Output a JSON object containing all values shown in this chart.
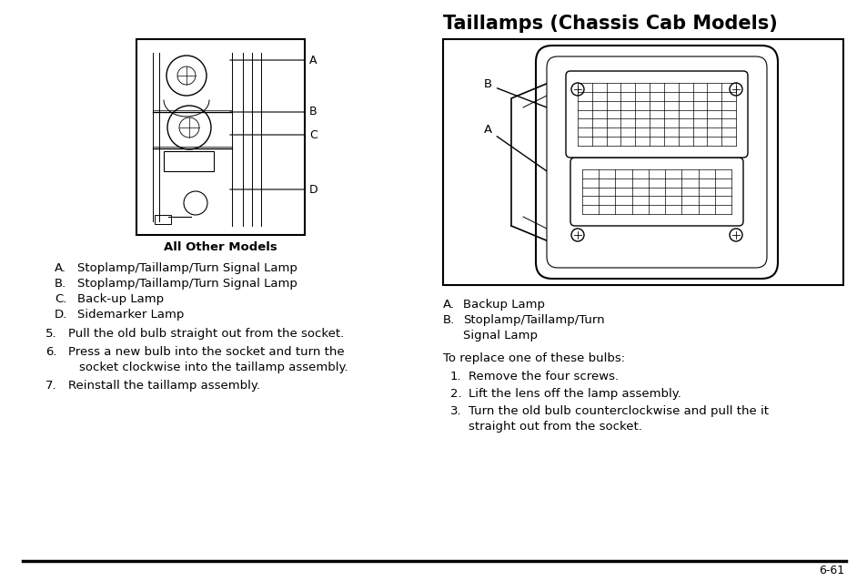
{
  "title": "Taillamps (Chassis Cab Models)",
  "title_fontsize": 15,
  "subtitle_left": "All Other Models",
  "left_items": [
    [
      "A.",
      "Stoplamp/Taillamp/Turn Signal Lamp"
    ],
    [
      "B.",
      "Stoplamp/Taillamp/Turn Signal Lamp"
    ],
    [
      "C.",
      "Back-up Lamp"
    ],
    [
      "D.",
      "Sidemarker Lamp"
    ]
  ],
  "numbered_items_left": [
    [
      "5.",
      "Pull the old bulb straight out from the socket.",
      ""
    ],
    [
      "6.",
      "Press a new bulb into the socket and turn the",
      "socket clockwise into the taillamp assembly."
    ],
    [
      "7.",
      "Reinstall the taillamp assembly.",
      ""
    ]
  ],
  "right_labels": [
    [
      "A.",
      "Backup Lamp"
    ],
    [
      "B.",
      "Stoplamp/Taillamp/Turn",
      "Signal Lamp"
    ]
  ],
  "right_intro": "To replace one of these bulbs:",
  "right_numbered": [
    [
      "1.",
      "Remove the four screws."
    ],
    [
      "2.",
      "Lift the lens off the lamp assembly."
    ],
    [
      "3.",
      "Turn the old bulb counterclockwise and pull the it",
      "straight out from the socket."
    ]
  ],
  "page_number": "6-61",
  "bg_color": "#ffffff",
  "text_color": "#000000"
}
